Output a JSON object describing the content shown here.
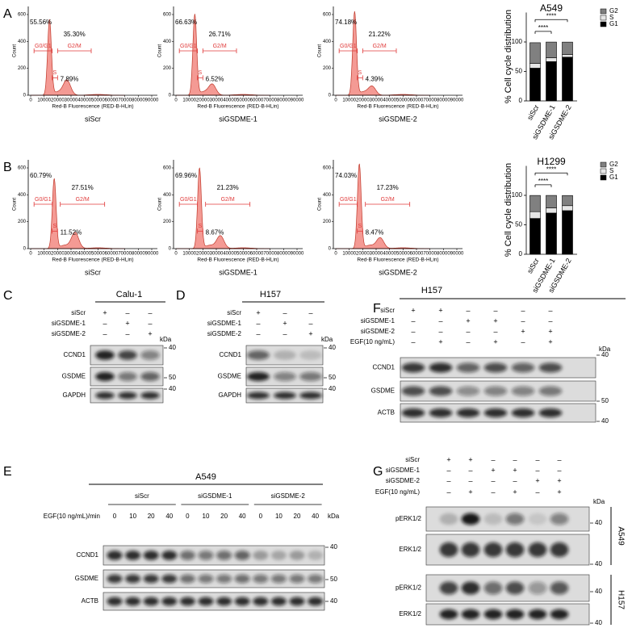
{
  "flow": {
    "y_label": "Count",
    "x_label": "Red-B Fluorescence (RED-B-HLin)",
    "x_ticks": [
      "0",
      "10000",
      "20000",
      "30000",
      "40000",
      "50000",
      "60000",
      "70000",
      "80000",
      "90000"
    ],
    "y_ticks": [
      "0",
      "200",
      "400",
      "600"
    ],
    "gate_labels": [
      "G0/G1",
      "S",
      "G2/M"
    ],
    "rows": [
      {
        "letter": "A",
        "plots": [
          {
            "sample": "siScr",
            "g1": "55.56%",
            "s": "7.89%",
            "g2": "35.30%"
          },
          {
            "sample": "siGSDME-1",
            "g1": "66.63%",
            "s": "6.52%",
            "g2": "26.71%"
          },
          {
            "sample": "siGSDME-2",
            "g1": "74.18%",
            "s": "4.39%",
            "g2": "21.22%"
          }
        ]
      },
      {
        "letter": "B",
        "plots": [
          {
            "sample": "siScr",
            "g1": "60.79%",
            "s": "11.52%",
            "g2": "27.51%"
          },
          {
            "sample": "siGSDME-1",
            "g1": "69.96%",
            "s": "8.67%",
            "g2": "21.23%"
          },
          {
            "sample": "siGSDME-2",
            "g1": "74.03%",
            "s": "8.47%",
            "g2": "17.23%"
          }
        ]
      }
    ]
  },
  "chart_data": [
    {
      "type": "bar",
      "stacked": true,
      "title": "A549",
      "y_label": "% Cell cycle distribution",
      "categories": [
        "siScr",
        "siGSDME-1",
        "siGSDME-2"
      ],
      "series": [
        {
          "name": "G1",
          "color": "#000000",
          "values": [
            55.56,
            66.63,
            74.18
          ]
        },
        {
          "name": "S",
          "color": "#e6e6e6",
          "values": [
            7.89,
            6.52,
            4.39
          ]
        },
        {
          "name": "G2",
          "color": "#808080",
          "values": [
            35.3,
            26.71,
            21.22
          ]
        }
      ],
      "ylim": [
        0,
        150
      ],
      "yticks": [
        0,
        50,
        100
      ],
      "annotations": [
        "****",
        "****"
      ]
    },
    {
      "type": "bar",
      "stacked": true,
      "title": "H1299",
      "y_label": "% Cell cycle distribution",
      "categories": [
        "siScr",
        "siGSDME-1",
        "siGSDME-2"
      ],
      "series": [
        {
          "name": "G1",
          "color": "#000000",
          "values": [
            60.79,
            69.96,
            74.03
          ]
        },
        {
          "name": "S",
          "color": "#e6e6e6",
          "values": [
            11.52,
            8.67,
            8.47
          ]
        },
        {
          "name": "G2",
          "color": "#808080",
          "values": [
            27.51,
            21.23,
            17.23
          ]
        }
      ],
      "ylim": [
        0,
        150
      ],
      "yticks": [
        0,
        50,
        100
      ],
      "annotations": [
        "****",
        "****"
      ]
    }
  ],
  "blots": {
    "C": {
      "letter": "C",
      "title": "Calu-1",
      "kda": "kDa",
      "conditions": [
        {
          "label": "siScr",
          "signs": [
            "+",
            "–",
            "–"
          ]
        },
        {
          "label": "siGSDME-1",
          "signs": [
            "–",
            "+",
            "–"
          ]
        },
        {
          "label": "siGSDME-2",
          "signs": [
            "–",
            "–",
            "+"
          ]
        }
      ],
      "bands": [
        {
          "label": "CCND1",
          "marker": "40"
        },
        {
          "label": "GSDME",
          "marker": "50"
        },
        {
          "label": "GAPDH",
          "marker": "40"
        }
      ]
    },
    "D": {
      "letter": "D",
      "title": "H157",
      "kda": "kDa",
      "conditions": [
        {
          "label": "siScr",
          "signs": [
            "+",
            "–",
            "–"
          ]
        },
        {
          "label": "siGSDME-1",
          "signs": [
            "–",
            "+",
            "–"
          ]
        },
        {
          "label": "siGSDME-2",
          "signs": [
            "–",
            "–",
            "+"
          ]
        }
      ],
      "bands": [
        {
          "label": "CCND1",
          "marker": "40"
        },
        {
          "label": "GSDME",
          "marker": "50"
        },
        {
          "label": "GAPDH",
          "marker": "40"
        }
      ]
    },
    "F": {
      "letter": "F",
      "title": "H157",
      "kda": "kDa",
      "conditions": [
        {
          "label": "siScr",
          "signs": [
            "+",
            "+",
            "–",
            "–",
            "–",
            "–"
          ]
        },
        {
          "label": "siGSDME-1",
          "signs": [
            "–",
            "–",
            "+",
            "+",
            "–",
            "–"
          ]
        },
        {
          "label": "siGSDME-2",
          "signs": [
            "–",
            "–",
            "–",
            "–",
            "+",
            "+"
          ]
        },
        {
          "label": "EGF(10 ng/mL)",
          "signs": [
            "–",
            "+",
            "–",
            "+",
            "–",
            "+"
          ]
        }
      ],
      "bands": [
        {
          "label": "CCND1",
          "marker": "40"
        },
        {
          "label": "GSDME",
          "marker": "50"
        },
        {
          "label": "ACTB",
          "marker": "40"
        }
      ]
    },
    "E": {
      "letter": "E",
      "title": "A549",
      "kda": "kDa",
      "groups": [
        "siScr",
        "siGSDME-1",
        "siGSDME-2"
      ],
      "time_label": "EGF(10 ng/mL)/min",
      "times": [
        "0",
        "10",
        "20",
        "40"
      ],
      "bands": [
        {
          "label": "CCND1",
          "marker": "40"
        },
        {
          "label": "GSDME",
          "marker": "50"
        },
        {
          "label": "ACTB",
          "marker": "40"
        }
      ]
    },
    "G": {
      "letter": "G",
      "kda": "kDa",
      "conditions": [
        {
          "label": "siScr",
          "signs": [
            "+",
            "+",
            "–",
            "–",
            "–",
            "–"
          ]
        },
        {
          "label": "siGSDME-1",
          "signs": [
            "–",
            "–",
            "+",
            "+",
            "–",
            "–"
          ]
        },
        {
          "label": "siGSDME-2",
          "signs": [
            "–",
            "–",
            "–",
            "–",
            "+",
            "+"
          ]
        },
        {
          "label": "EGF(10 ng/mL)",
          "signs": [
            "–",
            "+",
            "–",
            "+",
            "–",
            "+"
          ]
        }
      ],
      "sections": [
        {
          "cell_line": "A549",
          "bands": [
            {
              "label": "pERK1/2",
              "marker": "40"
            },
            {
              "label": "ERK1/2",
              "marker": "40"
            }
          ]
        },
        {
          "cell_line": "H157",
          "bands": [
            {
              "label": "pERK1/2",
              "marker": "40"
            },
            {
              "label": "ERK1/2",
              "marker": "40"
            }
          ]
        }
      ]
    }
  }
}
